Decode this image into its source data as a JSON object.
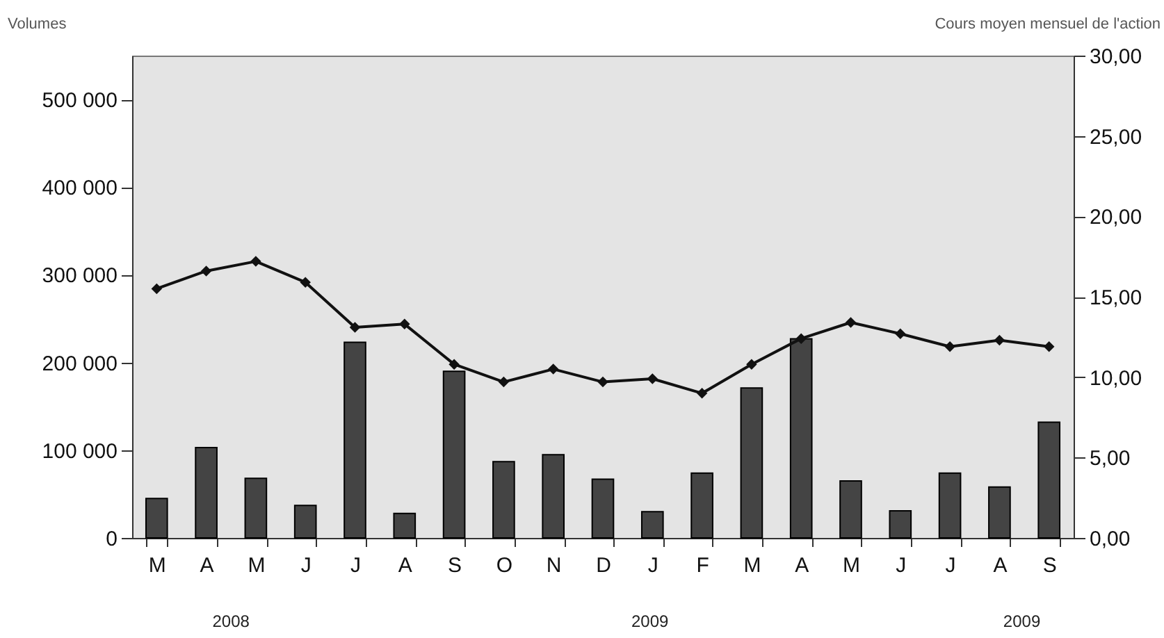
{
  "chart_data": {
    "type": "bar",
    "ylabel": "Volumes",
    "y2label": "Cours moyen mensuel de l'action",
    "categories": [
      "M",
      "A",
      "M",
      "J",
      "J",
      "A",
      "S",
      "O",
      "N",
      "D",
      "J",
      "F",
      "M",
      "A",
      "M",
      "J",
      "J",
      "A",
      "S"
    ],
    "series": [
      {
        "color": "#444444",
        "values": [
          45000,
          103000,
          68000,
          37000,
          223000,
          28000,
          190000,
          87000,
          95000,
          67000,
          30000,
          74000,
          171000,
          227000,
          65000,
          31000,
          74000,
          58000,
          132000
        ]
      },
      {
        "type": "line",
        "axis": "y2",
        "color": "#111111",
        "marker": "diamond",
        "line_style": "solid",
        "values": [
          15.5,
          16.6,
          17.2,
          15.9,
          13.1,
          13.3,
          10.8,
          9.7,
          10.5,
          9.7,
          9.9,
          9.0,
          10.8,
          12.4,
          13.4,
          12.7,
          11.9,
          12.3,
          11.9
        ]
      }
    ],
    "ylim": [
      0,
      550000
    ],
    "yticks": [
      {
        "value": 0,
        "label": "0"
      },
      {
        "value": 100000,
        "label": "100 000"
      },
      {
        "value": 200000,
        "label": "200 000"
      },
      {
        "value": 300000,
        "label": "300 000"
      },
      {
        "value": 400000,
        "label": "400 000"
      },
      {
        "value": 500000,
        "label": "500 000"
      }
    ],
    "y2lim": [
      0,
      30
    ],
    "y2ticks": [
      {
        "value": 0,
        "label": "0,00"
      },
      {
        "value": 5,
        "label": "5,00"
      },
      {
        "value": 10,
        "label": "10,00"
      },
      {
        "value": 15,
        "label": "15,00"
      },
      {
        "value": 20,
        "label": "20,00"
      },
      {
        "value": 25,
        "label": "25,00"
      },
      {
        "value": 30,
        "label": "30,00"
      }
    ],
    "annotations": [
      "2008",
      "2009",
      "2009"
    ],
    "grid": false
  }
}
